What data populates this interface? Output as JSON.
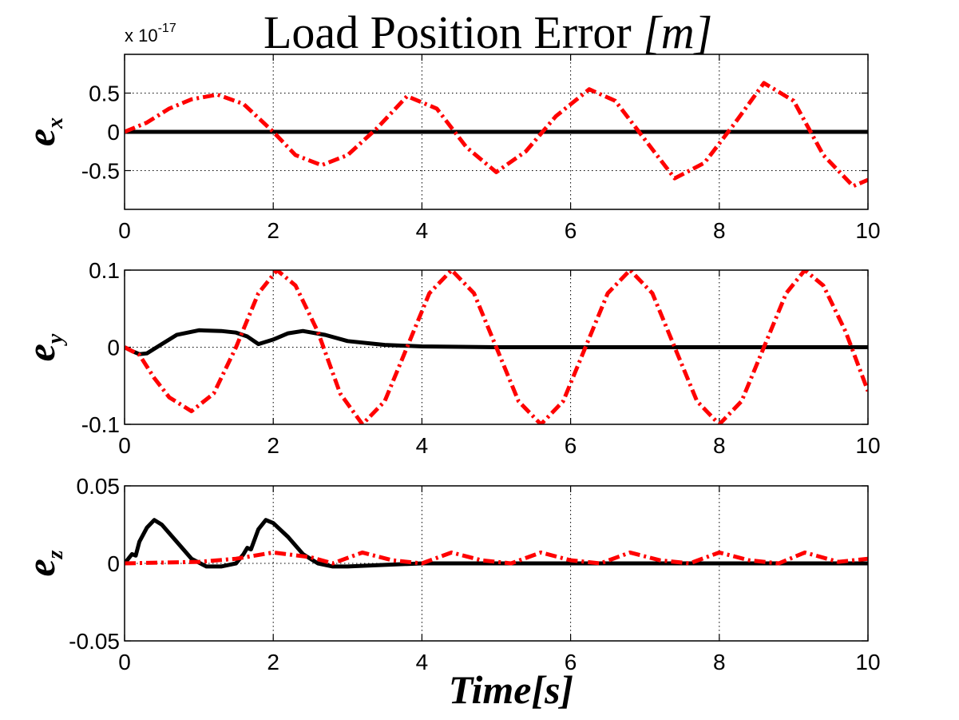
{
  "figure": {
    "title_text": "Load Position Error ",
    "title_unit": "[m]",
    "xlabel_main": "Time",
    "xlabel_unit": "[s]"
  },
  "chart_data": [
    {
      "type": "line",
      "ylabel_main": "e",
      "ylabel_sub": "x",
      "xlim": [
        0,
        10
      ],
      "ylim": [
        -1,
        1
      ],
      "x_ticks": [
        0,
        2,
        4,
        6,
        8,
        10
      ],
      "x_tick_labels": [
        "0",
        "2",
        "4",
        "6",
        "8",
        "10"
      ],
      "y_ticks": [
        -0.5,
        0,
        0.5
      ],
      "y_tick_labels": [
        "-0.5",
        "0",
        "0.5"
      ],
      "exponent_base": "x 10",
      "exponent_power": "-17",
      "grid": true,
      "series": [
        {
          "color": "#000000",
          "style": "solid",
          "x": [
            0,
            2,
            4,
            6,
            8,
            10
          ],
          "y": [
            0,
            0,
            0,
            0,
            0,
            0
          ]
        },
        {
          "color": "#ff0000",
          "style": "dashdot",
          "x": [
            0,
            0.3,
            0.6,
            0.9,
            1.25,
            1.6,
            2.0,
            2.3,
            2.65,
            3.0,
            3.4,
            3.8,
            4.2,
            4.6,
            5.0,
            5.4,
            5.8,
            6.25,
            6.6,
            7.0,
            7.4,
            7.8,
            8.2,
            8.6,
            9.0,
            9.4,
            9.8,
            10.0
          ],
          "y": [
            0,
            0.12,
            0.3,
            0.42,
            0.48,
            0.36,
            0.0,
            -0.3,
            -0.43,
            -0.3,
            0.05,
            0.46,
            0.3,
            -0.2,
            -0.52,
            -0.25,
            0.2,
            0.55,
            0.4,
            -0.1,
            -0.6,
            -0.4,
            0.1,
            0.63,
            0.4,
            -0.3,
            -0.7,
            -0.62
          ]
        }
      ]
    },
    {
      "type": "line",
      "ylabel_main": "e",
      "ylabel_sub": "y",
      "xlim": [
        0,
        10
      ],
      "ylim": [
        -0.1,
        0.1
      ],
      "x_ticks": [
        0,
        2,
        4,
        6,
        8,
        10
      ],
      "x_tick_labels": [
        "0",
        "2",
        "4",
        "6",
        "8",
        "10"
      ],
      "y_ticks": [
        -0.1,
        0,
        0.1
      ],
      "y_tick_labels": [
        "-0.1",
        "0",
        "0.1"
      ],
      "grid": true,
      "series": [
        {
          "color": "#000000",
          "style": "solid",
          "x": [
            0,
            0.1,
            0.2,
            0.3,
            0.5,
            0.7,
            1.0,
            1.3,
            1.5,
            1.65,
            1.8,
            2.0,
            2.2,
            2.4,
            2.7,
            3.0,
            3.5,
            4.0,
            5.0,
            6.0,
            8.0,
            10.0
          ],
          "y": [
            0,
            -0.005,
            -0.009,
            -0.008,
            0.004,
            0.016,
            0.022,
            0.021,
            0.019,
            0.014,
            0.004,
            0.01,
            0.018,
            0.021,
            0.016,
            0.008,
            0.003,
            0.001,
            0.0,
            0.0,
            0.0,
            0.0
          ]
        },
        {
          "color": "#ff0000",
          "style": "dashdot",
          "x": [
            0,
            0.2,
            0.4,
            0.6,
            0.9,
            1.2,
            1.5,
            1.8,
            2.05,
            2.3,
            2.6,
            2.9,
            3.2,
            3.5,
            3.8,
            4.1,
            4.4,
            4.7,
            5.0,
            5.3,
            5.6,
            5.9,
            6.2,
            6.5,
            6.8,
            7.1,
            7.4,
            7.7,
            8.0,
            8.3,
            8.6,
            8.9,
            9.15,
            9.4,
            9.7,
            10.0
          ],
          "y": [
            0,
            -0.01,
            -0.04,
            -0.065,
            -0.083,
            -0.06,
            0.0,
            0.07,
            0.1,
            0.08,
            0.02,
            -0.06,
            -0.1,
            -0.07,
            0.0,
            0.07,
            0.1,
            0.07,
            0.0,
            -0.07,
            -0.1,
            -0.07,
            0.0,
            0.07,
            0.1,
            0.07,
            0.0,
            -0.07,
            -0.1,
            -0.07,
            0.0,
            0.07,
            0.1,
            0.08,
            0.02,
            -0.057
          ]
        }
      ]
    },
    {
      "type": "line",
      "ylabel_main": "e",
      "ylabel_sub": "z",
      "xlim": [
        0,
        10
      ],
      "ylim": [
        -0.05,
        0.05
      ],
      "x_ticks": [
        0,
        2,
        4,
        6,
        8,
        10
      ],
      "x_tick_labels": [
        "0",
        "2",
        "4",
        "6",
        "8",
        "10"
      ],
      "y_ticks": [
        -0.05,
        0,
        0.05
      ],
      "y_tick_labels": [
        "-0.05",
        "0",
        "0.05"
      ],
      "grid": true,
      "series": [
        {
          "color": "#000000",
          "style": "solid",
          "x": [
            0,
            0.05,
            0.1,
            0.15,
            0.2,
            0.3,
            0.4,
            0.5,
            0.7,
            0.9,
            1.1,
            1.3,
            1.5,
            1.6,
            1.65,
            1.7,
            1.8,
            1.9,
            2.0,
            2.2,
            2.4,
            2.6,
            2.8,
            3.0,
            3.5,
            4.0,
            5.0,
            6.0,
            8.0,
            10.0
          ],
          "y": [
            0,
            0.003,
            0.006,
            0.005,
            0.014,
            0.023,
            0.028,
            0.025,
            0.014,
            0.003,
            -0.002,
            -0.002,
            0.0,
            0.006,
            0.01,
            0.009,
            0.022,
            0.028,
            0.026,
            0.017,
            0.006,
            0.0,
            -0.002,
            -0.002,
            -0.001,
            0.0,
            0.0,
            0.0,
            0.0,
            0.0
          ]
        },
        {
          "color": "#ff0000",
          "style": "dashdot",
          "x": [
            0,
            0.5,
            1.0,
            1.5,
            2.0,
            2.5,
            2.8,
            3.2,
            3.6,
            4.0,
            4.4,
            4.8,
            5.2,
            5.6,
            6.0,
            6.4,
            6.8,
            7.2,
            7.6,
            8.0,
            8.4,
            8.8,
            9.15,
            9.6,
            10.0
          ],
          "y": [
            0,
            0.0005,
            0.001,
            0.003,
            0.007,
            0.004,
            0.0,
            0.007,
            0.002,
            0.0,
            0.007,
            0.002,
            0.0,
            0.007,
            0.002,
            0.0,
            0.007,
            0.002,
            0.0,
            0.007,
            0.002,
            0.0,
            0.007,
            0.001,
            0.003
          ]
        }
      ]
    }
  ]
}
